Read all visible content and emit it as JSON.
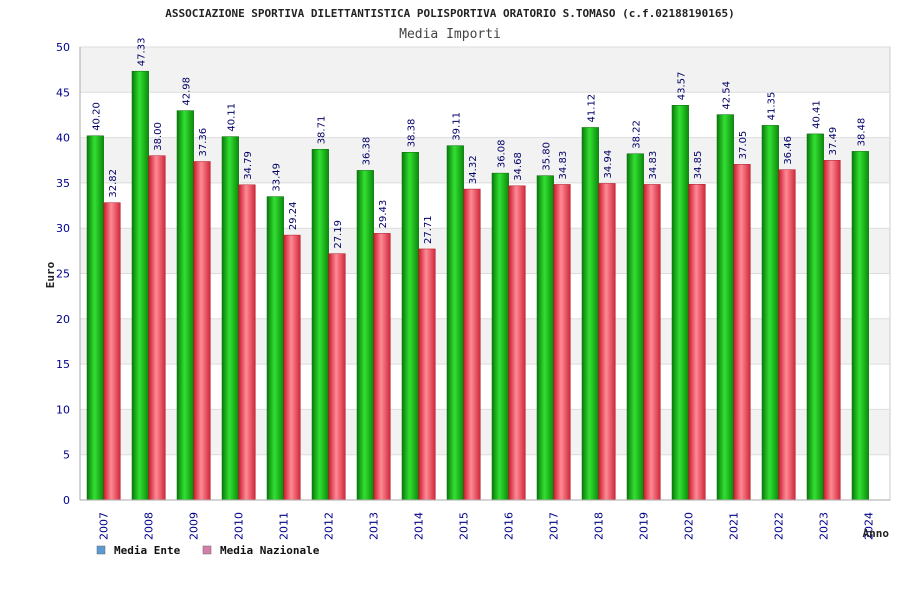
{
  "chart_data": {
    "type": "bar",
    "title": "ASSOCIAZIONE SPORTIVA DILETTANTISTICA POLISPORTIVA ORATORIO S.TOMASO (c.f.02188190165)",
    "subtitle": "Media Importi",
    "ylabel": "Euro",
    "xlabel": "Anno",
    "ylim": [
      0,
      50
    ],
    "yticks": [
      0,
      5,
      10,
      15,
      20,
      25,
      30,
      35,
      40,
      45,
      50
    ],
    "grid": true,
    "legend_position": "bottom-left",
    "categories": [
      "2007",
      "2008",
      "2009",
      "2010",
      "2011",
      "2012",
      "2013",
      "2014",
      "2015",
      "2016",
      "2017",
      "2018",
      "2019",
      "2020",
      "2021",
      "2022",
      "2023",
      "2024"
    ],
    "series": [
      {
        "name": "Media Ente",
        "color": "#1fb31f",
        "legend_color": "#5b9bd5",
        "values": [
          40.2,
          47.33,
          42.98,
          40.11,
          33.49,
          38.71,
          36.38,
          38.38,
          39.11,
          36.08,
          35.8,
          41.12,
          38.22,
          43.57,
          42.54,
          41.35,
          40.41,
          38.48
        ],
        "labels": [
          "40.20",
          "47.33",
          "42.98",
          "40.11",
          "33.49",
          "38.71",
          "36.38",
          "38.38",
          "39.11",
          "36.08",
          "35.80",
          "41.12",
          "38.22",
          "43.57",
          "42.54",
          "41.35",
          "40.41",
          "38.48"
        ]
      },
      {
        "name": "Media Nazionale",
        "color": "#e8404f",
        "legend_color": "#d67fa9",
        "values": [
          32.82,
          38.0,
          37.36,
          34.79,
          29.24,
          27.19,
          29.43,
          27.71,
          34.32,
          34.68,
          34.83,
          34.94,
          34.83,
          34.85,
          37.05,
          36.46,
          37.49,
          null
        ],
        "labels": [
          "32.82",
          "38.00",
          "37.36",
          "34.79",
          "29.24",
          "27.19",
          "29.43",
          "27.71",
          "34.32",
          "34.68",
          "34.83",
          "34.94",
          "34.83",
          "34.85",
          "37.05",
          "36.46",
          "37.49",
          ""
        ]
      }
    ]
  }
}
